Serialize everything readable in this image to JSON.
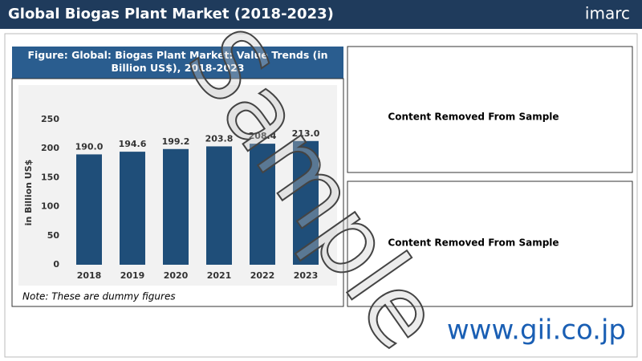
{
  "header": {
    "title": "Global Biogas Plant Market (2018-2023)",
    "logo": "imarc"
  },
  "chart_data": {
    "type": "bar",
    "title": "Figure: Global: Biogas Plant Market: Value Trends (in Billion US$), 2018-2023",
    "y_label": "in Billion US$",
    "categories": [
      "2018",
      "2019",
      "2020",
      "2021",
      "2022",
      "2023"
    ],
    "values": [
      190.0,
      194.6,
      199.2,
      203.8,
      208.4,
      213.0
    ],
    "value_labels": [
      "190.0",
      "194.6",
      "199.2",
      "203.8",
      "208.4",
      "213.0"
    ],
    "color": "#1f4e79",
    "ylim": [
      0,
      250
    ],
    "yticks": [
      0,
      50,
      100,
      150,
      200,
      250
    ],
    "grid": false,
    "note": "Note: These are dummy figures"
  },
  "panels": [
    "Content Removed From Sample",
    "Content Removed From Sample"
  ],
  "watermark": "Sample",
  "footer": "www.gii.co.jp"
}
